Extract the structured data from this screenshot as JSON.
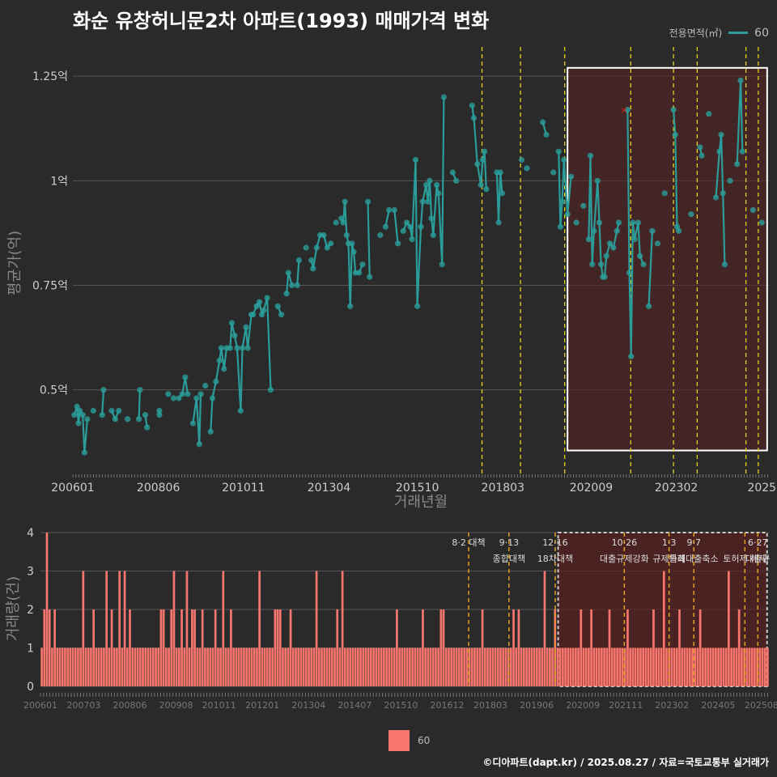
{
  "title": "화순 유창허니문2차 아파트(1993) 매매가격 변화",
  "legend_top": {
    "title": "전용면적(㎡)",
    "label": "60"
  },
  "legend_bottom": {
    "label": "60"
  },
  "credit": "©디아파트(dapt.kr) / 2025.08.27 / 자료=국토교통부 실거래가",
  "colors": {
    "price": "#2a9d9a",
    "volume": "#f8766d",
    "policy": "#e6d21c",
    "policy_bottom": "#e0a020",
    "highlight": "#5a2020"
  },
  "chart_data": [
    {
      "type": "line",
      "title": "화순 유창허니문2차 아파트(1993) 매매가격 변화",
      "xlabel": "거래년월",
      "ylabel": "평균가(억)",
      "xlim": [
        2006.0,
        2025.7
      ],
      "ylim": [
        0.3,
        1.32
      ],
      "yticks": [
        0.5,
        0.75,
        1.0,
        1.25
      ],
      "ytick_labels": [
        "0.5억",
        "0.75억",
        "1억",
        "1.25억"
      ],
      "xticks": [
        2006.0,
        2008.42,
        2010.83,
        2013.25,
        2015.75,
        2018.17,
        2020.67,
        2023.08,
        2025.5
      ],
      "xtick_labels": [
        "200601",
        "200806",
        "201011",
        "201304",
        "201510",
        "201803",
        "202009",
        "202302",
        "2025"
      ],
      "policy_lines": [
        2017.58,
        2018.67,
        2019.92,
        2021.79,
        2023.0,
        2023.67,
        2025.05,
        2025.4
      ],
      "highlight_range": [
        2020.0,
        2025.65
      ],
      "highlight_ylim": [
        0.355,
        1.27
      ],
      "marker_x": {
        "x": 2021.6,
        "y": 1.17
      },
      "series": [
        {
          "name": "60",
          "points": [
            [
              2006.04,
              0.44
            ],
            [
              2006.12,
              0.46
            ],
            [
              2006.16,
              0.42
            ],
            [
              2006.2,
              0.45
            ],
            [
              2006.28,
              0.44
            ],
            [
              2006.33,
              0.35
            ],
            [
              2006.41,
              0.43
            ],
            [
              2006.58,
              0.45
            ],
            [
              2006.87,
              0.5
            ],
            [
              2006.83,
              0.44
            ],
            [
              2007.1,
              0.45
            ],
            [
              2007.2,
              0.43
            ],
            [
              2007.3,
              0.45
            ],
            [
              2007.55,
              0.43
            ],
            [
              2007.9,
              0.5
            ],
            [
              2007.87,
              0.43
            ],
            [
              2008.1,
              0.41
            ],
            [
              2008.05,
              0.44
            ],
            [
              2008.45,
              0.45
            ],
            [
              2008.45,
              0.44
            ],
            [
              2008.7,
              0.49
            ],
            [
              2008.85,
              0.48
            ],
            [
              2009.0,
              0.48
            ],
            [
              2009.1,
              0.49
            ],
            [
              2009.18,
              0.53
            ],
            [
              2009.25,
              0.49
            ],
            [
              2009.4,
              0.42
            ],
            [
              2009.5,
              0.48
            ],
            [
              2009.58,
              0.37
            ],
            [
              2009.62,
              0.49
            ],
            [
              2009.75,
              0.51
            ],
            [
              2009.9,
              0.4
            ],
            [
              2009.95,
              0.48
            ],
            [
              2010.05,
              0.52
            ],
            [
              2010.15,
              0.57
            ],
            [
              2010.2,
              0.6
            ],
            [
              2010.28,
              0.55
            ],
            [
              2010.35,
              0.6
            ],
            [
              2010.45,
              0.6
            ],
            [
              2010.5,
              0.66
            ],
            [
              2010.58,
              0.63
            ],
            [
              2010.65,
              0.6
            ],
            [
              2010.75,
              0.45
            ],
            [
              2010.8,
              0.6
            ],
            [
              2010.9,
              0.65
            ],
            [
              2010.95,
              0.6
            ],
            [
              2011.05,
              0.68
            ],
            [
              2011.1,
              0.68
            ],
            [
              2011.2,
              0.7
            ],
            [
              2011.28,
              0.71
            ],
            [
              2011.35,
              0.68
            ],
            [
              2011.4,
              0.69
            ],
            [
              2011.5,
              0.72
            ],
            [
              2011.6,
              0.5
            ],
            [
              2011.8,
              0.7
            ],
            [
              2011.9,
              0.68
            ],
            [
              2012.05,
              0.73
            ],
            [
              2012.1,
              0.78
            ],
            [
              2012.2,
              0.75
            ],
            [
              2012.35,
              0.75
            ],
            [
              2012.4,
              0.81
            ],
            [
              2012.6,
              0.84
            ],
            [
              2012.75,
              0.81
            ],
            [
              2012.8,
              0.79
            ],
            [
              2012.9,
              0.84
            ],
            [
              2013.0,
              0.87
            ],
            [
              2013.1,
              0.87
            ],
            [
              2013.2,
              0.84
            ],
            [
              2013.3,
              0.85
            ],
            [
              2013.45,
              0.9
            ],
            [
              2013.6,
              0.91
            ],
            [
              2013.65,
              0.9
            ],
            [
              2013.75,
              0.87
            ],
            [
              2013.8,
              0.85
            ],
            [
              2013.85,
              0.7
            ],
            [
              2013.9,
              0.85
            ],
            [
              2013.95,
              0.83
            ],
            [
              2014.0,
              0.78
            ],
            [
              2014.1,
              0.78
            ],
            [
              2014.2,
              0.8
            ],
            [
              2014.4,
              0.77
            ],
            [
              2013.7,
              0.95
            ],
            [
              2014.35,
              0.95
            ],
            [
              2014.7,
              0.87
            ],
            [
              2014.85,
              0.89
            ],
            [
              2014.95,
              0.93
            ],
            [
              2015.1,
              0.93
            ],
            [
              2015.2,
              0.85
            ],
            [
              2015.35,
              0.88
            ],
            [
              2015.45,
              0.9
            ],
            [
              2015.55,
              0.89
            ],
            [
              2015.6,
              0.86
            ],
            [
              2015.7,
              1.05
            ],
            [
              2015.75,
              0.7
            ],
            [
              2015.85,
              0.89
            ],
            [
              2015.9,
              0.95
            ],
            [
              2016.0,
              0.99
            ],
            [
              2016.05,
              0.95
            ],
            [
              2016.1,
              1.0
            ],
            [
              2016.15,
              0.91
            ],
            [
              2016.2,
              0.87
            ],
            [
              2016.3,
              0.99
            ],
            [
              2016.35,
              0.97
            ],
            [
              2016.45,
              0.8
            ],
            [
              2016.5,
              1.2
            ],
            [
              2016.75,
              1.02
            ],
            [
              2016.85,
              1.0
            ],
            [
              2017.3,
              1.18
            ],
            [
              2017.35,
              1.15
            ],
            [
              2017.45,
              1.04
            ],
            [
              2017.55,
              0.99
            ],
            [
              2017.6,
              1.05
            ],
            [
              2017.65,
              1.07
            ],
            [
              2017.7,
              0.98
            ],
            [
              2018.0,
              1.02
            ],
            [
              2018.05,
              0.9
            ],
            [
              2018.1,
              1.02
            ],
            [
              2018.15,
              0.97
            ],
            [
              2018.7,
              1.05
            ],
            [
              2018.85,
              1.03
            ],
            [
              2019.3,
              1.14
            ],
            [
              2019.4,
              1.11
            ],
            [
              2019.6,
              1.02
            ],
            [
              2019.75,
              1.07
            ],
            [
              2019.8,
              0.89
            ],
            [
              2019.85,
              0.95
            ],
            [
              2019.9,
              1.05
            ],
            [
              2020.0,
              0.92
            ],
            [
              2020.1,
              1.01
            ],
            [
              2020.25,
              0.9
            ],
            [
              2020.45,
              0.94
            ],
            [
              2020.6,
              0.86
            ],
            [
              2020.65,
              1.06
            ],
            [
              2020.7,
              0.8
            ],
            [
              2020.75,
              0.88
            ],
            [
              2020.85,
              1.0
            ],
            [
              2020.9,
              0.9
            ],
            [
              2020.95,
              0.8
            ],
            [
              2021.0,
              0.77
            ],
            [
              2021.05,
              0.77
            ],
            [
              2021.1,
              0.82
            ],
            [
              2021.2,
              0.85
            ],
            [
              2021.3,
              0.84
            ],
            [
              2021.4,
              0.88
            ],
            [
              2021.45,
              0.9
            ],
            [
              2021.7,
              1.17
            ],
            [
              2021.75,
              0.78
            ],
            [
              2021.8,
              0.58
            ],
            [
              2021.85,
              0.9
            ],
            [
              2021.9,
              0.86
            ],
            [
              2022.0,
              0.9
            ],
            [
              2022.05,
              0.82
            ],
            [
              2022.15,
              0.8
            ],
            [
              2022.3,
              0.7
            ],
            [
              2022.4,
              0.88
            ],
            [
              2022.55,
              0.85
            ],
            [
              2022.75,
              0.97
            ],
            [
              2023.0,
              1.17
            ],
            [
              2023.05,
              1.11
            ],
            [
              2023.1,
              0.89
            ],
            [
              2023.15,
              0.88
            ],
            [
              2023.5,
              0.92
            ],
            [
              2023.75,
              1.08
            ],
            [
              2023.8,
              1.06
            ],
            [
              2024.0,
              1.16
            ],
            [
              2024.2,
              0.96
            ],
            [
              2024.3,
              1.07
            ],
            [
              2024.35,
              1.11
            ],
            [
              2024.4,
              0.97
            ],
            [
              2024.45,
              0.8
            ],
            [
              2024.6,
              1.0
            ],
            [
              2024.8,
              1.04
            ],
            [
              2024.9,
              1.24
            ],
            [
              2024.95,
              1.07
            ],
            [
              2025.25,
              0.93
            ],
            [
              2025.5,
              0.9
            ]
          ]
        }
      ]
    },
    {
      "type": "bar",
      "xlabel": "",
      "ylabel": "거래량(건)",
      "xlim": [
        2006.0,
        2025.7
      ],
      "ylim": [
        0,
        4
      ],
      "yticks": [
        0,
        1,
        2,
        3,
        4
      ],
      "xticks": [
        2006.0,
        2007.17,
        2008.42,
        2009.67,
        2010.83,
        2012.0,
        2013.25,
        2014.5,
        2015.75,
        2017.0,
        2018.17,
        2019.42,
        2020.67,
        2021.83,
        2023.08,
        2024.33,
        2025.5
      ],
      "xtick_labels": [
        "200601",
        "200703",
        "200806",
        "200908",
        "201011",
        "201201",
        "201304",
        "201407",
        "201510",
        "201612",
        "201803",
        "201906",
        "202009",
        "202111",
        "202302",
        "202405",
        "202508"
      ],
      "policy_lines": [
        2017.58,
        2018.67,
        2019.92,
        2021.79,
        2023.0,
        2023.67,
        2025.05,
        2025.4
      ],
      "policy_labels": [
        {
          "x": 2017.58,
          "lines": [
            "8·2 대책"
          ]
        },
        {
          "x": 2018.67,
          "lines": [
            "9·13",
            "종합대책"
          ]
        },
        {
          "x": 2019.92,
          "lines": [
            "12·16",
            "18차대책"
          ]
        },
        {
          "x": 2021.79,
          "lines": [
            "10·26",
            "대출규제강화"
          ]
        },
        {
          "x": 2023.0,
          "lines": [
            "1·3",
            "규제완화"
          ]
        },
        {
          "x": 2023.67,
          "lines": [
            "9·7",
            "특례대출축소"
          ]
        },
        {
          "x": 2025.05,
          "lines": [
            "",
            "토허제 해제"
          ]
        },
        {
          "x": 2025.4,
          "lines": [
            "6·27",
            "대출규"
          ]
        }
      ],
      "highlight_range": [
        2020.0,
        2025.65
      ],
      "values": [
        1,
        2,
        4,
        2,
        1,
        2,
        1,
        1,
        1,
        1,
        1,
        1,
        1,
        1,
        1,
        1,
        3,
        1,
        1,
        1,
        2,
        1,
        1,
        1,
        1,
        3,
        1,
        2,
        1,
        1,
        3,
        1,
        3,
        1,
        2,
        1,
        1,
        1,
        1,
        1,
        1,
        1,
        1,
        1,
        1,
        1,
        2,
        2,
        1,
        1,
        2,
        3,
        1,
        1,
        2,
        1,
        3,
        1,
        2,
        2,
        1,
        1,
        2,
        1,
        1,
        1,
        1,
        2,
        1,
        1,
        3,
        1,
        1,
        2,
        1,
        1,
        1,
        1,
        1,
        1,
        1,
        1,
        1,
        1,
        3,
        1,
        1,
        1,
        1,
        1,
        2,
        2,
        2,
        1,
        1,
        1,
        2,
        1,
        1,
        1,
        1,
        1,
        1,
        1,
        1,
        1,
        3,
        1,
        1,
        1,
        1,
        1,
        1,
        1,
        2,
        1,
        3,
        1,
        1,
        1,
        1,
        1,
        1,
        1,
        1,
        1,
        1,
        1,
        1,
        1,
        1,
        1,
        1,
        1,
        1,
        1,
        1,
        2,
        1,
        1,
        1,
        1,
        1,
        1,
        1,
        1,
        1,
        2,
        1,
        1,
        1,
        1,
        1,
        1,
        2,
        2,
        1,
        1,
        1,
        1,
        1,
        1,
        1,
        1,
        1,
        1,
        1,
        1,
        1,
        1,
        2,
        1,
        1,
        1,
        1,
        1,
        1,
        1,
        1,
        1,
        1,
        1,
        2,
        1,
        2,
        1,
        1,
        1,
        1,
        1,
        1,
        1,
        1,
        1,
        3,
        1,
        1,
        1,
        2,
        1,
        1,
        1,
        1,
        1,
        1,
        1,
        1,
        1,
        2,
        1,
        1,
        1,
        2,
        1,
        1,
        1,
        1,
        1,
        1,
        2,
        1,
        1,
        1,
        1,
        1,
        1,
        2,
        1,
        1,
        1,
        1,
        1,
        1,
        1,
        1,
        1,
        2,
        1,
        1,
        1,
        3,
        1,
        1,
        1,
        1,
        1,
        2,
        1,
        1,
        1,
        1,
        1,
        1,
        1,
        2,
        1,
        1,
        1,
        1,
        1,
        1,
        1,
        1,
        1,
        1,
        3,
        1,
        1,
        1,
        2,
        1,
        1,
        1,
        1,
        1,
        1,
        1,
        1,
        1,
        1,
        1
      ]
    }
  ]
}
